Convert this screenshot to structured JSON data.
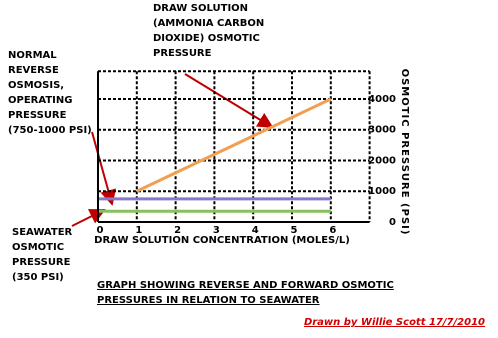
{
  "chart_data": {
    "type": "line",
    "xlabel": "DRAW SOLUTION CONCENTRATION (MOLES/L)",
    "ylabel": "OSMOTIC PRESSURE (PSI)",
    "xlim": [
      0,
      7
    ],
    "xticks": [
      0,
      1,
      2,
      3,
      4,
      5,
      6
    ],
    "ylim": [
      0,
      4900
    ],
    "yticks": [
      0,
      1000,
      2000,
      3000,
      4000
    ],
    "grid": true,
    "series": [
      {
        "color": "#f0a050",
        "x": [
          1,
          6
        ],
        "values": [
          1000,
          4000
        ]
      },
      {
        "color": "#8878c8",
        "x": [
          0,
          6
        ],
        "values": [
          750,
          750
        ]
      },
      {
        "color": "#88c060",
        "x": [
          0,
          6
        ],
        "values": [
          350,
          350
        ]
      }
    ],
    "annotations": [
      [
        "DRAW SOLUTION",
        "(AMMONIA CARBON",
        "DIOXIDE) OSMOTIC",
        "PRESSURE"
      ],
      [
        "NORMAL",
        "REVERSE",
        "OSMOSIS,",
        "OPERATING",
        "PRESSURE",
        "(750-1000 PSI)"
      ],
      [
        "SEAWATER",
        "OSMOTIC",
        "PRESSURE",
        "(350 PSI)"
      ]
    ],
    "caption": [
      "GRAPH SHOWING REVERSE AND FORWARD OSMOTIC",
      "PRESSURES IN RELATION TO SEAWATER"
    ],
    "credit": "Drawn by Willie Scott 17/7/2010"
  }
}
